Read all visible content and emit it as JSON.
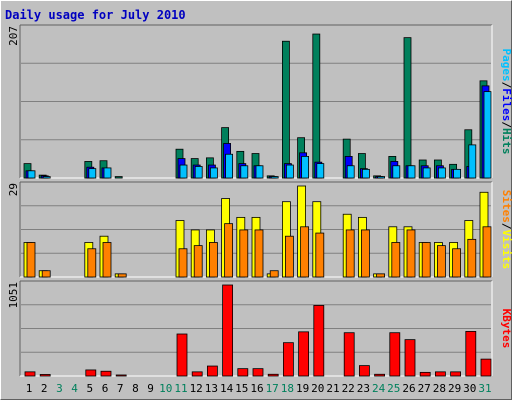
{
  "title": "Daily usage for July 2010",
  "colors": {
    "hits": "#00805c",
    "files": "#0000ff",
    "pages": "#00c0ff",
    "visits": "#ffff00",
    "sites": "#ff8000",
    "kbytes": "#ff0000",
    "weekend_label": "#00805c",
    "weekday_label": "#000000",
    "title": "#0000c0"
  },
  "chart_data": [
    {
      "type": "bar",
      "name": "hits-files-pages",
      "ymax_label": "207",
      "ymax": 207,
      "legend": [
        "Pages",
        "/",
        "Files",
        "/",
        "Hits"
      ],
      "categories": [
        "1",
        "2",
        "3",
        "4",
        "5",
        "6",
        "7",
        "8",
        "9",
        "10",
        "11",
        "12",
        "13",
        "14",
        "15",
        "16",
        "17",
        "18",
        "19",
        "20",
        "21",
        "22",
        "23",
        "24",
        "25",
        "26",
        "27",
        "28",
        "29",
        "30",
        "31"
      ],
      "weekend_days": [
        3,
        4,
        10,
        11,
        17,
        18,
        24,
        25,
        31
      ],
      "series": [
        {
          "name": "Hits",
          "values": [
            20,
            4,
            0,
            0,
            23,
            24,
            2,
            0,
            0,
            0,
            40,
            27,
            28,
            70,
            37,
            34,
            3,
            190,
            56,
            200,
            0,
            54,
            34,
            3,
            30,
            195,
            25,
            25,
            19,
            67,
            135
          ]
        },
        {
          "name": "Files",
          "values": [
            10,
            3,
            0,
            0,
            15,
            14,
            0,
            0,
            0,
            0,
            27,
            18,
            18,
            48,
            20,
            17,
            2,
            20,
            35,
            22,
            0,
            30,
            13,
            2,
            23,
            17,
            17,
            17,
            12,
            16,
            128
          ]
        },
        {
          "name": "Pages",
          "values": [
            10,
            2,
            0,
            0,
            13,
            14,
            0,
            0,
            0,
            0,
            18,
            16,
            14,
            33,
            17,
            17,
            2,
            18,
            30,
            20,
            0,
            17,
            12,
            2,
            17,
            17,
            14,
            14,
            12,
            46,
            120
          ]
        }
      ]
    },
    {
      "type": "bar",
      "name": "visits-sites",
      "ymax_label": "29",
      "ymax": 29,
      "legend": [
        "Sites",
        "/",
        "Visits"
      ],
      "categories": [
        "1",
        "2",
        "3",
        "4",
        "5",
        "6",
        "7",
        "8",
        "9",
        "10",
        "11",
        "12",
        "13",
        "14",
        "15",
        "16",
        "17",
        "18",
        "19",
        "20",
        "21",
        "22",
        "23",
        "24",
        "25",
        "26",
        "27",
        "28",
        "29",
        "30",
        "31"
      ],
      "series": [
        {
          "name": "Visits",
          "values": [
            11,
            2,
            0,
            0,
            11,
            13,
            1,
            0,
            0,
            0,
            18,
            15,
            15,
            25,
            19,
            19,
            1,
            24,
            29,
            24,
            0,
            20,
            19,
            1,
            16,
            16,
            11,
            11,
            11,
            18,
            27
          ]
        },
        {
          "name": "Sites",
          "values": [
            11,
            2,
            0,
            0,
            9,
            11,
            1,
            0,
            0,
            0,
            9,
            10,
            11,
            17,
            15,
            15,
            2,
            13,
            16,
            14,
            0,
            15,
            15,
            1,
            11,
            15,
            11,
            10,
            9,
            12,
            16
          ]
        }
      ]
    },
    {
      "type": "bar",
      "name": "kbytes",
      "ymax_label": "1051",
      "ymax": 1051,
      "legend": [
        "KBytes"
      ],
      "categories": [
        "1",
        "2",
        "3",
        "4",
        "5",
        "6",
        "7",
        "8",
        "9",
        "10",
        "11",
        "12",
        "13",
        "14",
        "15",
        "16",
        "17",
        "18",
        "19",
        "20",
        "21",
        "22",
        "23",
        "24",
        "25",
        "26",
        "27",
        "28",
        "29",
        "30",
        "31"
      ],
      "series": [
        {
          "name": "KBytes",
          "values": [
            48,
            18,
            0,
            0,
            70,
            55,
            12,
            0,
            0,
            0,
            485,
            48,
            115,
            1051,
            85,
            85,
            20,
            385,
            510,
            815,
            0,
            500,
            120,
            20,
            500,
            420,
            42,
            48,
            48,
            515,
            195
          ]
        }
      ]
    }
  ]
}
